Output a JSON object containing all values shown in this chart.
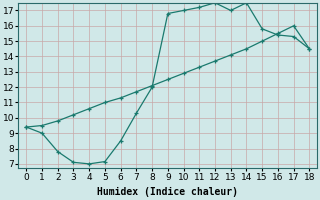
{
  "xlabel": "Humidex (Indice chaleur)",
  "bg_color": "#d0e8e8",
  "line_color": "#1a7a6e",
  "grid_color": "#b8d8d8",
  "xlim_min": -0.5,
  "xlim_max": 18.5,
  "ylim_min": 6.7,
  "ylim_max": 17.5,
  "xticks": [
    0,
    1,
    2,
    3,
    4,
    5,
    6,
    7,
    8,
    9,
    10,
    11,
    12,
    13,
    14,
    15,
    16,
    17,
    18
  ],
  "yticks": [
    7,
    8,
    9,
    10,
    11,
    12,
    13,
    14,
    15,
    16,
    17
  ],
  "upper_x": [
    0,
    1,
    2,
    3,
    4,
    5,
    6,
    7,
    8,
    9,
    10,
    11,
    12,
    13,
    14,
    15,
    16,
    17,
    18
  ],
  "upper_y": [
    9.4,
    9.0,
    7.8,
    7.1,
    7.0,
    7.15,
    8.5,
    10.3,
    12.0,
    16.8,
    17.0,
    17.2,
    17.5,
    17.0,
    17.5,
    15.8,
    15.4,
    15.3,
    14.5
  ],
  "lower_x": [
    0,
    1,
    2,
    3,
    4,
    5,
    6,
    7,
    8,
    9,
    10,
    11,
    12,
    13,
    14,
    15,
    16,
    17,
    18
  ],
  "lower_y": [
    9.4,
    9.5,
    9.8,
    10.2,
    10.6,
    11.0,
    11.3,
    11.7,
    12.1,
    12.5,
    12.9,
    13.3,
    13.7,
    14.1,
    14.5,
    15.0,
    15.5,
    16.0,
    14.5
  ],
  "xlabel_fontsize": 7,
  "tick_fontsize": 6.5
}
